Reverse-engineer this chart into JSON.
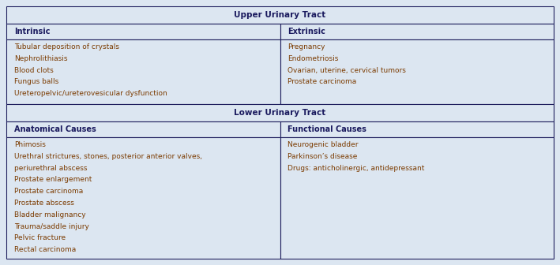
{
  "bg_color": "#dce6f1",
  "border_color": "#1f1f5e",
  "text_color": "#7b3b00",
  "header_text_color": "#1a1a5e",
  "upper_header": "Upper Urinary Tract",
  "lower_header": "Lower Urinary Tract",
  "col1_header_upper": "Intrinsic",
  "col2_header_upper": "Extrinsic",
  "col1_header_lower": "Anatomical Causes",
  "col2_header_lower": "Functional Causes",
  "upper_col1": [
    "Tubular deposition of crystals",
    "Nephrolithiasis",
    "Blood clots",
    "Fungus balls",
    "Ureteropelvic/ureterovesicular dysfunction"
  ],
  "upper_col2": [
    "Pregnancy",
    "Endometriosis",
    "Ovarian, uterine, cervical tumors",
    "Prostate carcinoma"
  ],
  "lower_col1": [
    "Phimosis",
    "Urethral strictures, stones, posterior anterior valves,",
    "periurethral abscess",
    "Prostate enlargement",
    "Prostate carcinoma",
    "Prostate abscess",
    "Bladder malignancy",
    "Trauma/saddle injury",
    "Pelvic fracture",
    "Rectal carcinoma"
  ],
  "lower_col2": [
    "Neurogenic bladder",
    "Parkinson’s disease",
    "Drugs: anticholinergic, antidepressant"
  ],
  "figwidth": 7.09,
  "figheight": 3.36,
  "dpi": 100
}
